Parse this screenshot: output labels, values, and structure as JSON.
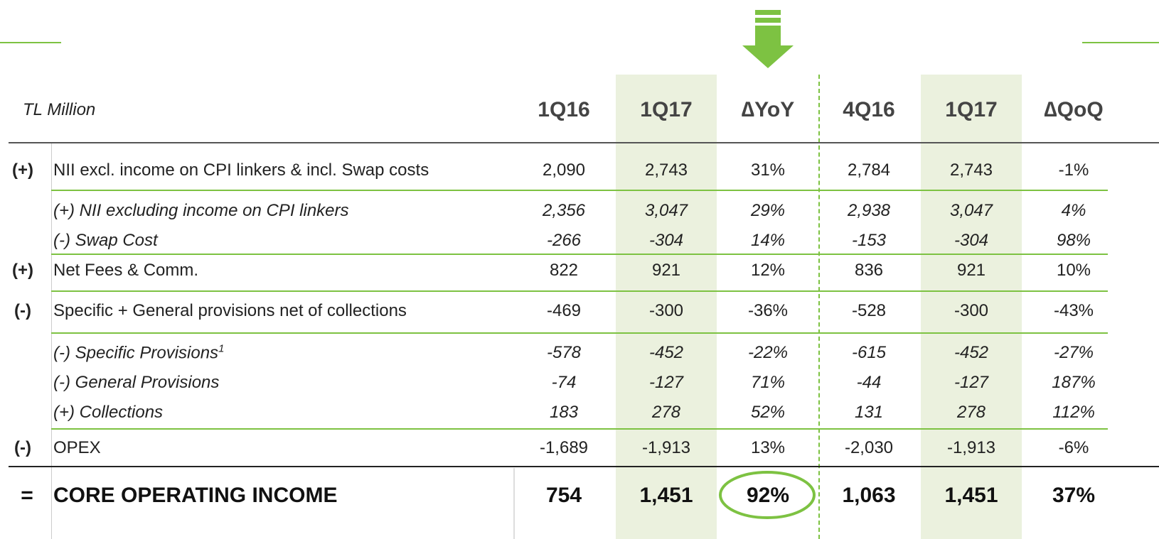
{
  "table": {
    "unit": "TL Million",
    "columns": [
      "1Q16",
      "1Q17",
      "∆YoY",
      "4Q16",
      "1Q17",
      "∆QoQ"
    ],
    "rows": [
      {
        "sign": "(+)",
        "label": "NII excl. income on CPI linkers & incl. Swap costs",
        "values": [
          "2,090",
          "2,743",
          "31%",
          "2,784",
          "2,743",
          "-1%"
        ]
      },
      {
        "label": "(+) NII excluding income on CPI linkers",
        "values": [
          "2,356",
          "3,047",
          "29%",
          "2,938",
          "3,047",
          "4%"
        ]
      },
      {
        "label": "(-) Swap Cost",
        "values": [
          "-266",
          "-304",
          "14%",
          "-153",
          "-304",
          "98%"
        ]
      },
      {
        "sign": "(+)",
        "label": "Net Fees & Comm.",
        "values": [
          "822",
          "921",
          "12%",
          "836",
          "921",
          "10%"
        ]
      },
      {
        "sign": "(-)",
        "label": "Specific + General provisions net of collections",
        "values": [
          "-469",
          "-300",
          "-36%",
          "-528",
          "-300",
          "-43%"
        ]
      },
      {
        "label": "(-) Specific Provisions",
        "note": "1",
        "values": [
          "-578",
          "-452",
          "-22%",
          "-615",
          "-452",
          "-27%"
        ]
      },
      {
        "label": "(-) General Provisions",
        "values": [
          "-74",
          "-127",
          "71%",
          "-44",
          "-127",
          "187%"
        ]
      },
      {
        "label": "(+) Collections",
        "values": [
          "183",
          "278",
          "52%",
          "131",
          "278",
          "112%"
        ]
      },
      {
        "sign": "(-)",
        "label": "OPEX",
        "values": [
          "-1,689",
          "-1,913",
          "13%",
          "-2,030",
          "-1,913",
          "-6%"
        ]
      }
    ],
    "total": {
      "sign": "=",
      "label": "CORE OPERATING INCOME",
      "values": [
        "754",
        "1,451",
        "92%",
        "1,063",
        "1,451",
        "37%"
      ]
    }
  }
}
